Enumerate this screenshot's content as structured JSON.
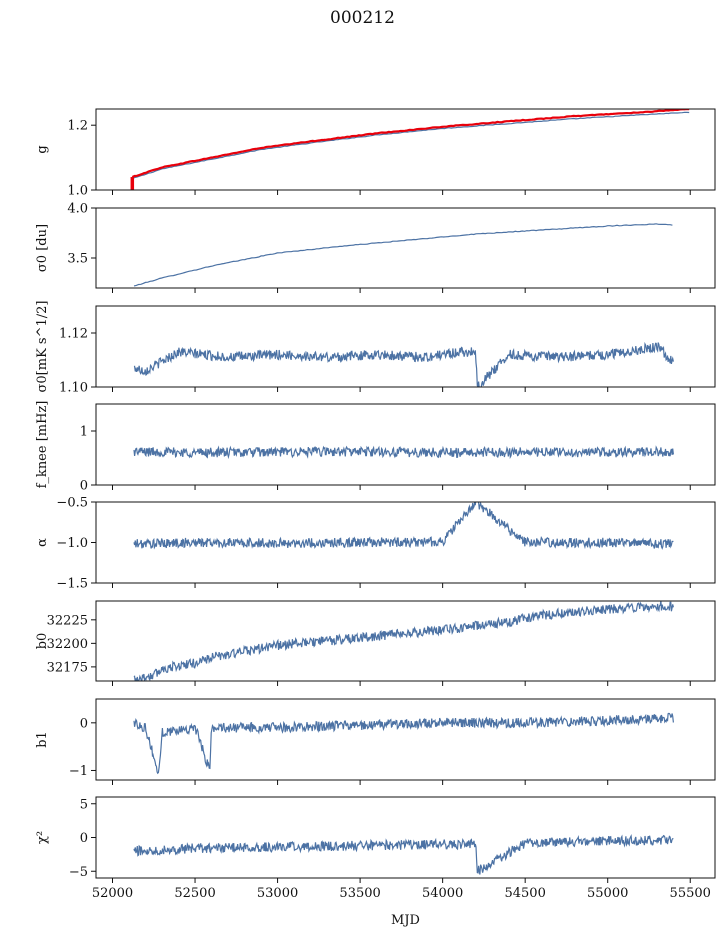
{
  "figure": {
    "title": "000212",
    "xlabel": "MJD"
  },
  "colors": {
    "series": "#4c72a4",
    "overlay": "#e8000b",
    "axis": "#111111"
  },
  "x_axis": {
    "xlim": [
      51900,
      55650
    ],
    "ticks": [
      52000,
      52500,
      53000,
      53500,
      54000,
      54500,
      55000,
      55500
    ],
    "tick_labels": [
      "52000",
      "52500",
      "53000",
      "53500",
      "54000",
      "54500",
      "55000",
      "55500"
    ]
  },
  "chart_data": [
    {
      "type": "line",
      "ylabel": "g",
      "ylim": [
        1.0,
        1.25
      ],
      "yticks": [
        1.0,
        1.2
      ],
      "ytick_labels": [
        "1.0",
        "1.2"
      ],
      "series": [
        {
          "color": "#4c72a4",
          "x": [
            52120,
            52300,
            52600,
            52900,
            53200,
            53600,
            54000,
            54400,
            54800,
            55200,
            55500
          ],
          "y": [
            1.035,
            1.065,
            1.095,
            1.125,
            1.145,
            1.17,
            1.19,
            1.205,
            1.22,
            1.232,
            1.24
          ]
        },
        {
          "color": "#e8000b",
          "x": [
            52120,
            52300,
            52600,
            52900,
            53200,
            53600,
            54000,
            54400,
            54800,
            55200,
            55500
          ],
          "y": [
            1.04,
            1.07,
            1.1,
            1.13,
            1.15,
            1.175,
            1.195,
            1.212,
            1.228,
            1.24,
            1.25
          ]
        }
      ]
    },
    {
      "type": "line",
      "ylabel": "σ0 [du]",
      "ylim": [
        3.2,
        4.0
      ],
      "yticks": [
        3.5,
        4.0
      ],
      "ytick_labels": [
        "3.5",
        "4.0"
      ],
      "series": [
        {
          "x": [
            52130,
            52300,
            52600,
            53000,
            53400,
            53800,
            54200,
            54600,
            55000,
            55300,
            55400
          ],
          "y": [
            3.22,
            3.3,
            3.42,
            3.55,
            3.62,
            3.68,
            3.74,
            3.78,
            3.82,
            3.84,
            3.83
          ]
        }
      ]
    },
    {
      "type": "line",
      "ylabel": "σ0[mK s^1/2]",
      "ylim": [
        1.1,
        1.13
      ],
      "yticks": [
        1.1,
        1.12
      ],
      "ytick_labels": [
        "1.10",
        "1.12"
      ],
      "series": [
        {
          "x": [
            52130,
            52200,
            52400,
            52700,
            53000,
            53300,
            53600,
            53900,
            54100,
            54200,
            54210,
            54400,
            54700,
            55000,
            55300,
            55400
          ],
          "y": [
            1.107,
            1.106,
            1.113,
            1.111,
            1.112,
            1.111,
            1.112,
            1.111,
            1.113,
            1.113,
            1.1,
            1.112,
            1.111,
            1.112,
            1.115,
            1.109
          ]
        }
      ]
    },
    {
      "type": "line",
      "ylabel": "f_knee [mHz]",
      "ylim": [
        0,
        1.5
      ],
      "yticks": [
        0,
        1
      ],
      "ytick_labels": [
        "0",
        "1"
      ],
      "series": [
        {
          "x": [
            52130,
            52500,
            53000,
            53500,
            54000,
            54500,
            55000,
            55400
          ],
          "y": [
            0.62,
            0.6,
            0.61,
            0.62,
            0.6,
            0.61,
            0.6,
            0.62
          ]
        }
      ]
    },
    {
      "type": "line",
      "ylabel": "α",
      "ylim": [
        -1.5,
        -0.5
      ],
      "yticks": [
        -1.5,
        -1.0,
        -0.5
      ],
      "ytick_labels": [
        "−1.5",
        "−1.0",
        "−0.5"
      ],
      "series": [
        {
          "x": [
            52130,
            52500,
            53000,
            53500,
            54000,
            54200,
            54500,
            55000,
            55400
          ],
          "y": [
            -1.02,
            -1.0,
            -1.01,
            -1.0,
            -0.99,
            -0.5,
            -1.0,
            -1.0,
            -1.02
          ]
        }
      ]
    },
    {
      "type": "line",
      "ylabel": "b0",
      "ylim": [
        32160,
        32245
      ],
      "yticks": [
        32175,
        32200,
        32225
      ],
      "ytick_labels": [
        "32175",
        "32200",
        "32225"
      ],
      "series": [
        {
          "x": [
            52130,
            52250,
            52300,
            52500,
            52600,
            53000,
            53500,
            54000,
            54400,
            54600,
            55000,
            55300,
            55400
          ],
          "y": [
            32162,
            32166,
            32173,
            32179,
            32185,
            32198,
            32206,
            32214,
            32223,
            32230,
            32236,
            32240,
            32239
          ]
        }
      ]
    },
    {
      "type": "line",
      "ylabel": "b1",
      "ylim": [
        -1.2,
        0.5
      ],
      "yticks": [
        -1,
        0
      ],
      "ytick_labels": [
        "−1",
        "0"
      ],
      "series": [
        {
          "x": [
            52130,
            52200,
            52280,
            52300,
            52500,
            52590,
            52600,
            53000,
            53500,
            54000,
            54500,
            55000,
            55400
          ],
          "y": [
            0.0,
            -0.1,
            -1.1,
            -0.2,
            -0.1,
            -1.0,
            -0.1,
            -0.1,
            -0.05,
            0.0,
            0.0,
            0.05,
            0.1
          ]
        }
      ]
    },
    {
      "type": "line",
      "ylabel": "χ²",
      "ylim": [
        -6,
        6
      ],
      "yticks": [
        -5,
        0,
        5
      ],
      "ytick_labels": [
        "−5",
        "0",
        "5"
      ],
      "series": [
        {
          "x": [
            52130,
            52500,
            53000,
            53500,
            54000,
            54200,
            54210,
            54500,
            55000,
            55400
          ],
          "y": [
            -2.0,
            -1.6,
            -1.4,
            -1.2,
            -1.0,
            -1.0,
            -5.0,
            -0.8,
            -0.5,
            -0.4
          ]
        }
      ]
    }
  ]
}
